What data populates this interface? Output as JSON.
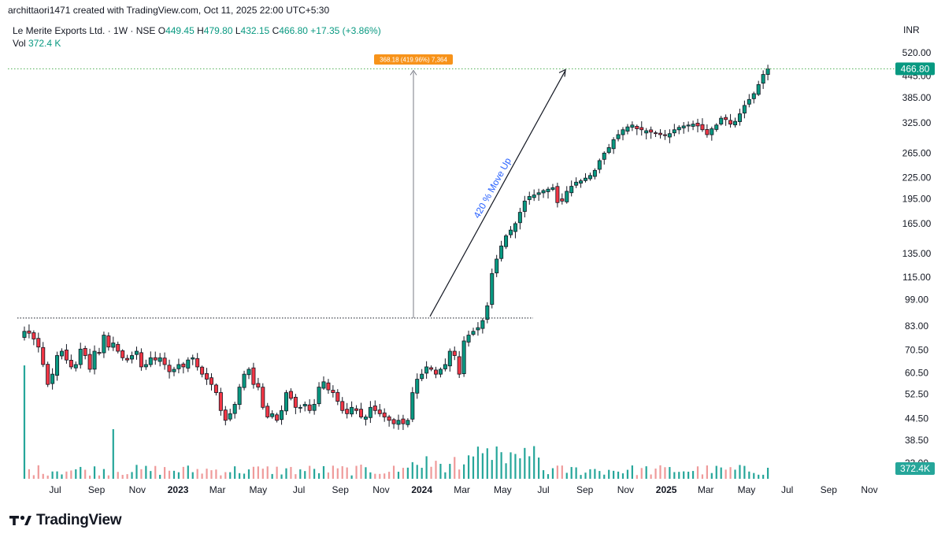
{
  "header": {
    "credit": "archittaori1471 created with TradingView.com, Oct 11, 2025 22:00 UTC+5:30"
  },
  "legend": {
    "title": "Le Merite Exports Ltd. · 1W · NSE",
    "o_label": "O",
    "o_value": "449.45",
    "h_label": "H",
    "h_value": "479.80",
    "l_label": "L",
    "l_value": "432.15",
    "c_label": "C",
    "c_value": "466.80",
    "change": "+17.35 (+3.86%)",
    "vol_label": "Vol",
    "vol_value": "372.4 K"
  },
  "currency": "INR",
  "footer": {
    "brand": "TradingView"
  },
  "colors": {
    "up": "#089981",
    "down": "#f23645",
    "vol_up": "#26a69a",
    "vol_down": "#ef9a9a",
    "text": "#131722",
    "axis_text": "#131722",
    "price_line": "#4caf50",
    "annotation": "#f7931a",
    "drawing": "#131722",
    "vline": "#787b86",
    "callout": "#2962ff"
  },
  "chart_data": {
    "type": "candlestick",
    "timeframe": "1W",
    "y_scale": "log",
    "y_ticks": [
      "520.00",
      "445.00",
      "385.00",
      "325.00",
      "265.00",
      "225.00",
      "195.00",
      "165.00",
      "135.00",
      "115.00",
      "99.00",
      "83.00",
      "70.50",
      "60.50",
      "52.50",
      "44.50",
      "38.50",
      "33.00"
    ],
    "x_ticks": [
      {
        "label": "Jul",
        "date": "2022-07-01",
        "bold": false
      },
      {
        "label": "Sep",
        "date": "2022-09-01",
        "bold": false
      },
      {
        "label": "Nov",
        "date": "2022-11-01",
        "bold": false
      },
      {
        "label": "2023",
        "date": "2023-01-01",
        "bold": true
      },
      {
        "label": "Mar",
        "date": "2023-03-01",
        "bold": false
      },
      {
        "label": "May",
        "date": "2023-05-01",
        "bold": false
      },
      {
        "label": "Jul",
        "date": "2023-07-01",
        "bold": false
      },
      {
        "label": "Sep",
        "date": "2023-09-01",
        "bold": false
      },
      {
        "label": "Nov",
        "date": "2023-11-01",
        "bold": false
      },
      {
        "label": "2024",
        "date": "2024-01-01",
        "bold": true
      },
      {
        "label": "Mar",
        "date": "2024-03-01",
        "bold": false
      },
      {
        "label": "May",
        "date": "2024-05-01",
        "bold": false
      },
      {
        "label": "Jul",
        "date": "2024-07-01",
        "bold": false
      },
      {
        "label": "Sep",
        "date": "2024-09-01",
        "bold": false
      },
      {
        "label": "Nov",
        "date": "2024-11-01",
        "bold": false
      },
      {
        "label": "2025",
        "date": "2025-01-01",
        "bold": true
      },
      {
        "label": "Mar",
        "date": "2025-03-01",
        "bold": false
      },
      {
        "label": "May",
        "date": "2025-05-01",
        "bold": false
      },
      {
        "label": "Jul",
        "date": "2025-07-01",
        "bold": false
      },
      {
        "label": "Sep",
        "date": "2025-09-01",
        "bold": false
      },
      {
        "label": "Nov",
        "date": "2025-11-01",
        "bold": false
      }
    ],
    "first_candle_date": "2022-05-16",
    "candles_close": [
      80,
      79,
      76,
      72,
      64,
      56,
      60,
      68,
      70,
      66,
      63,
      64,
      71,
      68,
      62,
      70,
      69,
      78,
      72,
      74,
      70,
      67,
      66,
      68,
      70,
      63,
      64,
      67,
      66,
      67,
      64,
      61,
      62,
      64,
      63,
      66,
      67,
      63,
      60,
      58,
      56,
      53,
      47,
      44,
      46,
      49,
      55,
      60,
      62,
      56,
      55,
      48,
      45,
      46,
      44,
      47,
      53,
      51,
      48,
      48,
      49,
      47,
      49,
      55,
      57,
      54,
      53,
      50,
      47,
      46,
      48,
      47,
      45,
      45,
      48,
      47,
      46,
      45,
      44,
      43,
      44,
      43,
      44,
      53,
      58,
      60,
      63,
      62,
      60,
      62,
      64,
      70,
      68,
      60,
      75,
      78,
      80,
      82,
      86,
      95,
      118,
      130,
      142,
      152,
      158,
      165,
      178,
      192,
      198,
      200,
      203,
      206,
      208,
      210,
      190,
      192,
      205,
      212,
      218,
      220,
      224,
      228,
      236,
      252,
      265,
      275,
      290,
      300,
      310,
      316,
      320,
      312,
      310,
      308,
      305,
      302,
      300,
      298,
      302,
      310,
      315,
      318,
      320,
      322,
      318,
      310,
      300,
      312,
      320,
      335,
      332,
      322,
      328,
      345,
      365,
      380,
      395,
      420,
      449.45,
      466.8
    ],
    "last_ohlc": {
      "open": 449.45,
      "high": 479.8,
      "low": 432.15,
      "close": 466.8
    },
    "last_price": "466.80",
    "last_volume": "372.4K",
    "annotations": {
      "measure_label": "368.18 (419.96%) 7,364",
      "callout": "420 % Move Up",
      "base_level": 87.5,
      "target_level": 466.8
    }
  }
}
